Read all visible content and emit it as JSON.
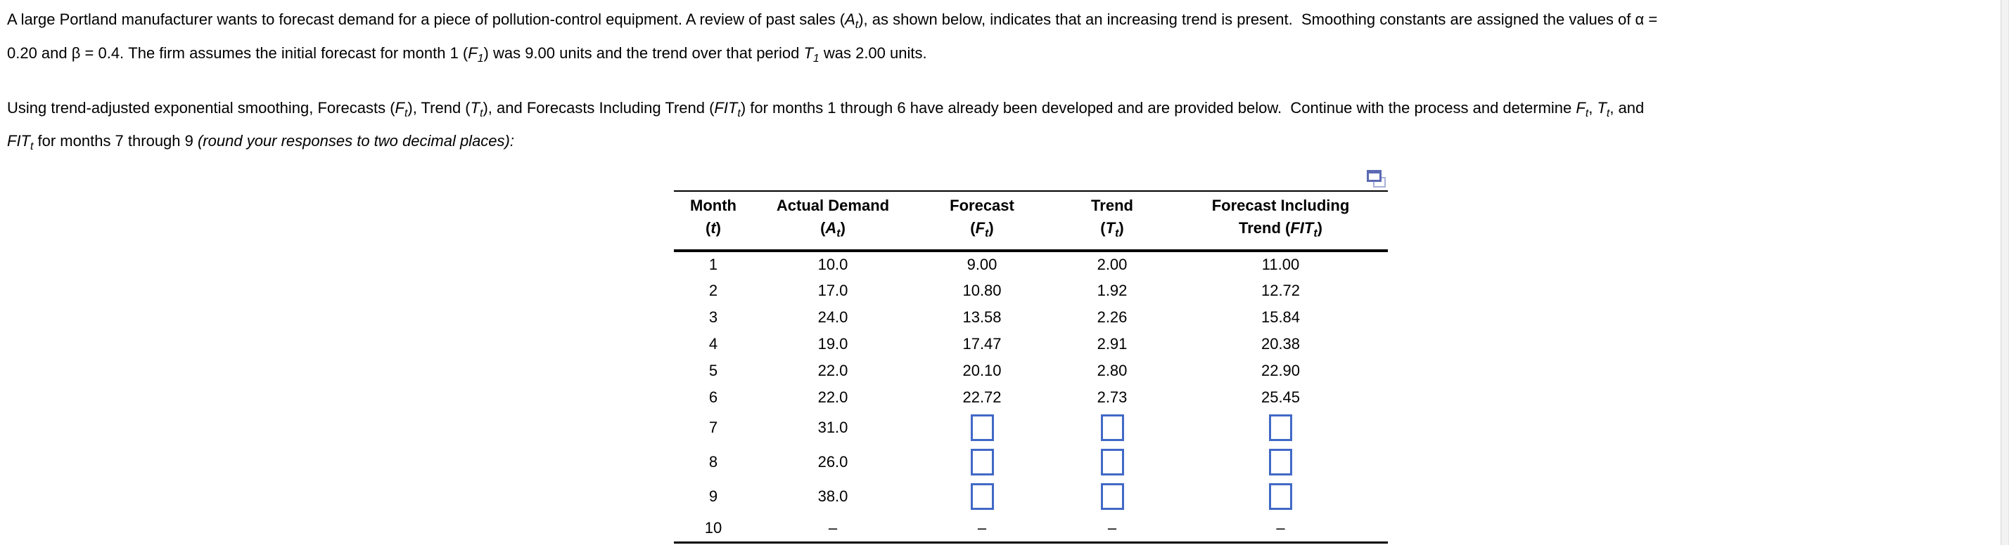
{
  "intro": {
    "p1_lines": [
      [
        {
          "t": "A large Portland manufacturer wants to forecast demand for a piece of pollution-control equipment. A review of past sales ("
        },
        {
          "t": "A",
          "i": 1
        },
        {
          "t": "t",
          "i": 1,
          "s": 1
        },
        {
          "t": "), as shown below, indicates that an increasing trend is present.  Smoothing constants are assigned the values of α ="
        }
      ],
      [
        {
          "t": "0.20 and β = 0.4. The firm assumes the initial forecast for month 1 ("
        },
        {
          "t": "F",
          "i": 1
        },
        {
          "t": "1",
          "i": 1,
          "s": 1
        },
        {
          "t": ") was 9.00 units and the trend over that period "
        },
        {
          "t": "T",
          "i": 1
        },
        {
          "t": "1",
          "i": 1,
          "s": 1
        },
        {
          "t": " was 2.00 units."
        }
      ]
    ],
    "p2_lines": [
      [
        {
          "t": "Using trend-adjusted exponential smoothing, Forecasts ("
        },
        {
          "t": "F",
          "i": 1
        },
        {
          "t": "t",
          "i": 1,
          "s": 1
        },
        {
          "t": "), Trend ("
        },
        {
          "t": "T",
          "i": 1
        },
        {
          "t": "t",
          "i": 1,
          "s": 1
        },
        {
          "t": "), and Forecasts Including Trend ("
        },
        {
          "t": "FIT",
          "i": 1
        },
        {
          "t": "t",
          "i": 1,
          "s": 1
        },
        {
          "t": ") for months 1 through 6 have already been developed and are provided below.  Continue with the process and determine "
        },
        {
          "t": "F",
          "i": 1
        },
        {
          "t": "t",
          "i": 1,
          "s": 1
        },
        {
          "t": ", "
        },
        {
          "t": "T",
          "i": 1
        },
        {
          "t": "t",
          "i": 1,
          "s": 1
        },
        {
          "t": ", and"
        }
      ],
      [
        {
          "t": "FIT",
          "i": 1
        },
        {
          "t": "t",
          "i": 1,
          "s": 1
        },
        {
          "t": " for months 7 through 9 "
        },
        {
          "t": "(round your responses to two decimal places):",
          "i": 1
        }
      ]
    ]
  },
  "icons": {
    "popup_window": "popup-window-icon"
  },
  "colors": {
    "input_border": "#4169C6",
    "icon_front": "#5B6AB3",
    "icon_back": "#A9B1D9",
    "scrollbar_track": "#F2F2F2",
    "text": "#000000"
  },
  "table": {
    "columns": [
      {
        "id": "month",
        "line1": "Month",
        "line2": [
          {
            "t": "("
          },
          {
            "t": "t",
            "i": 1
          },
          {
            "t": ")"
          }
        ]
      },
      {
        "id": "actual",
        "line1": "Actual Demand",
        "line2": [
          {
            "t": "("
          },
          {
            "t": "A",
            "i": 1
          },
          {
            "t": "t",
            "i": 1,
            "s": 1
          },
          {
            "t": ")"
          }
        ]
      },
      {
        "id": "forecast",
        "line1": "Forecast",
        "line2": [
          {
            "t": "("
          },
          {
            "t": "F",
            "i": 1
          },
          {
            "t": "t",
            "i": 1,
            "s": 1
          },
          {
            "t": ")"
          }
        ]
      },
      {
        "id": "trend",
        "line1": "Trend",
        "line2": [
          {
            "t": "("
          },
          {
            "t": "T",
            "i": 1
          },
          {
            "t": "t",
            "i": 1,
            "s": 1
          },
          {
            "t": ")"
          }
        ]
      },
      {
        "id": "fit",
        "line1": "Forecast Including",
        "line2": [
          {
            "t": "Trend ("
          },
          {
            "t": "FIT",
            "i": 1
          },
          {
            "t": "t",
            "i": 1,
            "s": 1
          },
          {
            "t": ")"
          }
        ]
      }
    ],
    "rows": [
      {
        "month": "1",
        "actual": "10.0",
        "forecast": "9.00",
        "trend": "2.00",
        "fit": "11.00"
      },
      {
        "month": "2",
        "actual": "17.0",
        "forecast": "10.80",
        "trend": "1.92",
        "fit": "12.72"
      },
      {
        "month": "3",
        "actual": "24.0",
        "forecast": "13.58",
        "trend": "2.26",
        "fit": "15.84"
      },
      {
        "month": "4",
        "actual": "19.0",
        "forecast": "17.47",
        "trend": "2.91",
        "fit": "20.38"
      },
      {
        "month": "5",
        "actual": "22.0",
        "forecast": "20.10",
        "trend": "2.80",
        "fit": "22.90"
      },
      {
        "month": "6",
        "actual": "22.0",
        "forecast": "22.72",
        "trend": "2.73",
        "fit": "25.45"
      },
      {
        "month": "7",
        "actual": "31.0",
        "forecast": null,
        "trend": null,
        "fit": null
      },
      {
        "month": "8",
        "actual": "26.0",
        "forecast": null,
        "trend": null,
        "fit": null
      },
      {
        "month": "9",
        "actual": "38.0",
        "forecast": null,
        "trend": null,
        "fit": null
      },
      {
        "month": "10",
        "actual": "–",
        "forecast": "–",
        "trend": "–",
        "fit": "–"
      }
    ],
    "input_rows_months": [
      "7",
      "8",
      "9"
    ]
  }
}
